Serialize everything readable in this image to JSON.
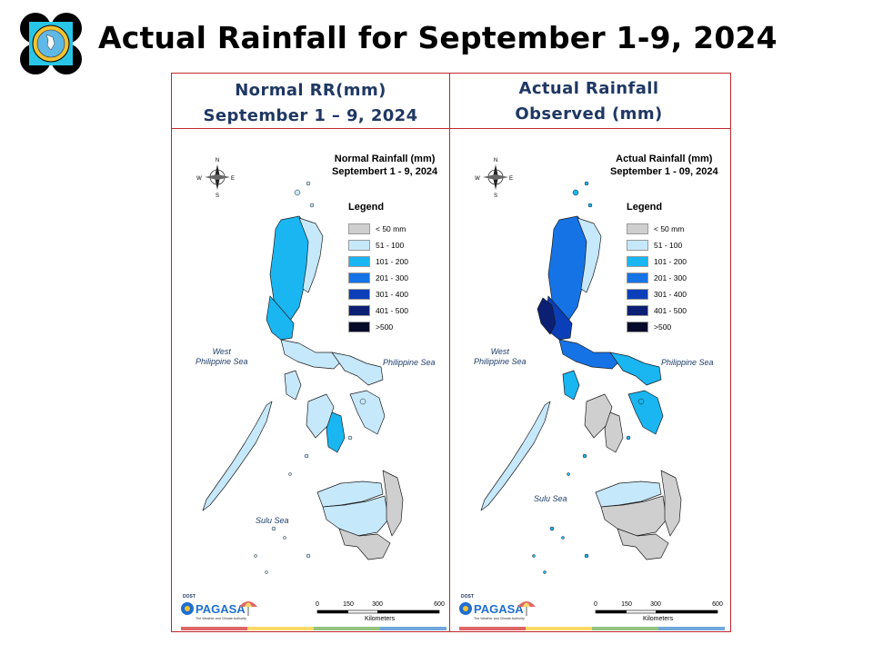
{
  "slide": {
    "title": "Actual Rainfall for September 1-9, 2024"
  },
  "palette": {
    "lt50": "#cfcfcf",
    "r51_100": "#c6e8fb",
    "r101_200": "#19b6f2",
    "r201_300": "#1673e6",
    "r301_400": "#0b3fb9",
    "r401_500": "#0b1f73",
    "gt500": "#050a2a",
    "frame": "#c0282d",
    "heading": "#1f3864"
  },
  "legend": {
    "title": "Legend",
    "items": [
      {
        "label": "< 50 mm",
        "color_key": "lt50"
      },
      {
        "label": "51 - 100",
        "color_key": "r51_100"
      },
      {
        "label": "101 - 200",
        "color_key": "r101_200"
      },
      {
        "label": "201 - 300",
        "color_key": "r201_300"
      },
      {
        "label": "301 - 400",
        "color_key": "r301_400"
      },
      {
        "label": "401 - 500",
        "color_key": "r401_500"
      },
      {
        "label": ">500",
        "color_key": "gt500"
      }
    ]
  },
  "panels": [
    {
      "id": "normal",
      "heading": [
        "Normal RR(mm)",
        "September 1 – 9, 2024"
      ],
      "map_title": [
        "Normal Rainfall (mm)",
        "Septembert 1 - 9, 2024"
      ],
      "seas": {
        "west": [
          "West",
          "Philippine Sea"
        ],
        "east": "Philippine Sea",
        "south": "Sulu Sea"
      },
      "regions": {
        "north_luzon": "r101_200",
        "north_luzon_east": "r51_100",
        "central_luzon": "r101_200",
        "south_luzon": "r51_100",
        "bicol": "r51_100",
        "mindoro": "r51_100",
        "palawan": "r51_100",
        "visayas_west": "r51_100",
        "visayas_east": "r51_100",
        "negros": "r101_200",
        "mindanao_north": "r51_100",
        "mindanao_center": "r51_100",
        "mindanao_south": "lt50",
        "mindanao_east": "lt50"
      }
    },
    {
      "id": "actual",
      "heading": [
        "Actual Rainfall",
        "Observed (mm)"
      ],
      "map_title": [
        "Actual Rainfall (mm)",
        "September 1 - 09, 2024"
      ],
      "seas": {
        "west": [
          "West",
          "Philippine Sea"
        ],
        "east": "Philippine Sea",
        "south": "Sulu Sea"
      },
      "regions": {
        "north_luzon": "r201_300",
        "north_luzon_east": "r51_100",
        "central_luzon": "r301_400",
        "south_luzon": "r201_300",
        "bicol": "r101_200",
        "mindoro": "r101_200",
        "palawan": "r51_100",
        "visayas_west": "lt50",
        "visayas_east": "r101_200",
        "negros": "lt50",
        "mindanao_north": "r51_100",
        "mindanao_center": "lt50",
        "mindanao_south": "lt50",
        "mindanao_east": "lt50",
        "zambales_coast": "r401_500"
      }
    }
  ],
  "compass": {
    "n": "N",
    "s": "S",
    "e": "E",
    "w": "W"
  },
  "scale": {
    "ticks": [
      "0",
      "150",
      "300",
      "600"
    ],
    "unit": "Kilometers"
  },
  "brand": {
    "name": "PAGASA",
    "dost": "DOST",
    "tagline": "The Weather and Climate Authority"
  },
  "strip_colors": [
    "#e06666",
    "#ffd966",
    "#93c47d",
    "#6fa8dc"
  ]
}
